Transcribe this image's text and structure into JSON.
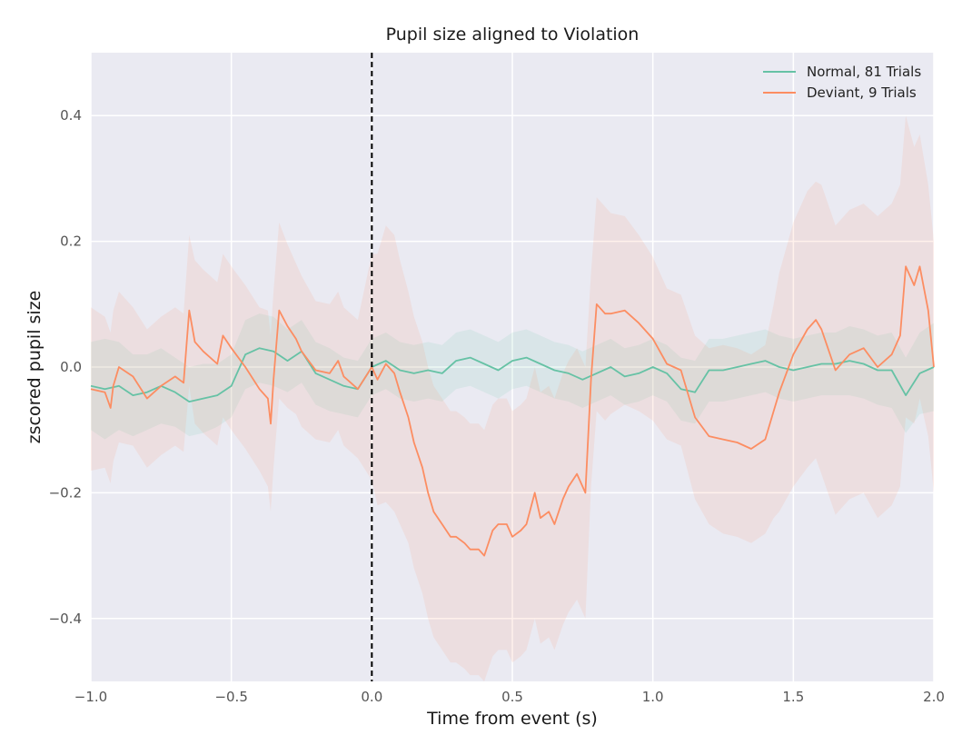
{
  "chart_data": {
    "type": "line",
    "title": "Pupil size aligned to Violation",
    "xlabel": "Time from event (s)",
    "ylabel": "zscored pupil size",
    "xlim": [
      -1.0,
      2.0
    ],
    "ylim": [
      -0.5,
      0.5
    ],
    "xticks": [
      -1.0,
      -0.5,
      0.0,
      0.5,
      1.0,
      1.5,
      2.0
    ],
    "xtick_labels": [
      "−1.0",
      "−0.5",
      "0.0",
      "0.5",
      "1.0",
      "1.5",
      "2.0"
    ],
    "yticks": [
      -0.4,
      -0.2,
      0.0,
      0.2,
      0.4
    ],
    "ytick_labels": [
      "−0.4",
      "−0.2",
      "0.0",
      "0.2",
      "0.4"
    ],
    "grid": true,
    "legend_position": "top-right",
    "event_line": {
      "x": 0.0,
      "style": "dashed",
      "color": "#000000"
    },
    "background_color": "#eaeaf2",
    "series": [
      {
        "name": "Normal, 81 Trials",
        "color": "#66c2a5",
        "points": [
          [
            -1.0,
            -0.03
          ],
          [
            -0.95,
            -0.035
          ],
          [
            -0.9,
            -0.03
          ],
          [
            -0.85,
            -0.045
          ],
          [
            -0.8,
            -0.04
          ],
          [
            -0.75,
            -0.03
          ],
          [
            -0.7,
            -0.04
          ],
          [
            -0.65,
            -0.055
          ],
          [
            -0.6,
            -0.05
          ],
          [
            -0.55,
            -0.045
          ],
          [
            -0.5,
            -0.03
          ],
          [
            -0.45,
            0.02
          ],
          [
            -0.4,
            0.03
          ],
          [
            -0.35,
            0.025
          ],
          [
            -0.3,
            0.01
          ],
          [
            -0.25,
            0.025
          ],
          [
            -0.2,
            -0.01
          ],
          [
            -0.15,
            -0.02
          ],
          [
            -0.1,
            -0.03
          ],
          [
            -0.05,
            -0.035
          ],
          [
            0.0,
            0.0
          ],
          [
            0.05,
            0.01
          ],
          [
            0.1,
            -0.005
          ],
          [
            0.15,
            -0.01
          ],
          [
            0.2,
            -0.005
          ],
          [
            0.25,
            -0.01
          ],
          [
            0.3,
            0.01
          ],
          [
            0.35,
            0.015
          ],
          [
            0.4,
            0.005
          ],
          [
            0.45,
            -0.005
          ],
          [
            0.5,
            0.01
          ],
          [
            0.55,
            0.015
          ],
          [
            0.6,
            0.005
          ],
          [
            0.65,
            -0.005
          ],
          [
            0.7,
            -0.01
          ],
          [
            0.75,
            -0.02
          ],
          [
            0.8,
            -0.01
          ],
          [
            0.85,
            0.0
          ],
          [
            0.9,
            -0.015
          ],
          [
            0.95,
            -0.01
          ],
          [
            1.0,
            0.0
          ],
          [
            1.05,
            -0.01
          ],
          [
            1.1,
            -0.035
          ],
          [
            1.15,
            -0.04
          ],
          [
            1.2,
            -0.005
          ],
          [
            1.25,
            -0.005
          ],
          [
            1.3,
            0.0
          ],
          [
            1.35,
            0.005
          ],
          [
            1.4,
            0.01
          ],
          [
            1.45,
            0.0
          ],
          [
            1.5,
            -0.005
          ],
          [
            1.55,
            0.0
          ],
          [
            1.6,
            0.005
          ],
          [
            1.65,
            0.005
          ],
          [
            1.7,
            0.01
          ],
          [
            1.75,
            0.005
          ],
          [
            1.8,
            -0.005
          ],
          [
            1.85,
            -0.005
          ],
          [
            1.9,
            -0.045
          ],
          [
            1.95,
            -0.01
          ],
          [
            2.0,
            0.0
          ]
        ],
        "band": [
          0.07,
          0.08,
          0.07,
          0.065,
          0.06,
          0.06,
          0.055,
          0.055,
          0.055,
          0.05,
          0.05,
          0.055,
          0.055,
          0.055,
          0.05,
          0.05,
          0.05,
          0.05,
          0.045,
          0.045,
          0.045,
          0.045,
          0.045,
          0.045,
          0.045,
          0.045,
          0.045,
          0.045,
          0.045,
          0.045,
          0.045,
          0.045,
          0.045,
          0.045,
          0.045,
          0.045,
          0.045,
          0.045,
          0.045,
          0.045,
          0.045,
          0.045,
          0.05,
          0.05,
          0.05,
          0.05,
          0.05,
          0.05,
          0.05,
          0.05,
          0.05,
          0.05,
          0.05,
          0.05,
          0.055,
          0.055,
          0.055,
          0.06,
          0.06,
          0.065,
          0.07
        ]
      },
      {
        "name": "Deviant, 9 Trials",
        "color": "#fc8d62",
        "points": [
          [
            -1.0,
            -0.035
          ],
          [
            -0.95,
            -0.04
          ],
          [
            -0.93,
            -0.065
          ],
          [
            -0.92,
            -0.03
          ],
          [
            -0.9,
            0.0
          ],
          [
            -0.85,
            -0.015
          ],
          [
            -0.8,
            -0.05
          ],
          [
            -0.75,
            -0.03
          ],
          [
            -0.7,
            -0.015
          ],
          [
            -0.67,
            -0.025
          ],
          [
            -0.65,
            0.09
          ],
          [
            -0.63,
            0.04
          ],
          [
            -0.6,
            0.025
          ],
          [
            -0.55,
            0.005
          ],
          [
            -0.53,
            0.05
          ],
          [
            -0.5,
            0.03
          ],
          [
            -0.45,
            0.0
          ],
          [
            -0.4,
            -0.035
          ],
          [
            -0.37,
            -0.05
          ],
          [
            -0.36,
            -0.09
          ],
          [
            -0.35,
            -0.02
          ],
          [
            -0.33,
            0.09
          ],
          [
            -0.3,
            0.065
          ],
          [
            -0.27,
            0.045
          ],
          [
            -0.25,
            0.025
          ],
          [
            -0.2,
            -0.005
          ],
          [
            -0.15,
            -0.01
          ],
          [
            -0.12,
            0.01
          ],
          [
            -0.1,
            -0.015
          ],
          [
            -0.05,
            -0.035
          ],
          [
            0.0,
            0.0
          ],
          [
            0.02,
            -0.02
          ],
          [
            0.05,
            0.005
          ],
          [
            0.08,
            -0.01
          ],
          [
            0.1,
            -0.04
          ],
          [
            0.13,
            -0.08
          ],
          [
            0.15,
            -0.12
          ],
          [
            0.18,
            -0.16
          ],
          [
            0.2,
            -0.2
          ],
          [
            0.22,
            -0.23
          ],
          [
            0.25,
            -0.25
          ],
          [
            0.28,
            -0.27
          ],
          [
            0.3,
            -0.27
          ],
          [
            0.33,
            -0.28
          ],
          [
            0.35,
            -0.29
          ],
          [
            0.38,
            -0.29
          ],
          [
            0.4,
            -0.3
          ],
          [
            0.43,
            -0.26
          ],
          [
            0.45,
            -0.25
          ],
          [
            0.48,
            -0.25
          ],
          [
            0.5,
            -0.27
          ],
          [
            0.53,
            -0.26
          ],
          [
            0.55,
            -0.25
          ],
          [
            0.58,
            -0.2
          ],
          [
            0.6,
            -0.24
          ],
          [
            0.63,
            -0.23
          ],
          [
            0.65,
            -0.25
          ],
          [
            0.68,
            -0.21
          ],
          [
            0.7,
            -0.19
          ],
          [
            0.73,
            -0.17
          ],
          [
            0.76,
            -0.2
          ],
          [
            0.78,
            -0.02
          ],
          [
            0.8,
            0.1
          ],
          [
            0.83,
            0.085
          ],
          [
            0.85,
            0.085
          ],
          [
            0.9,
            0.09
          ],
          [
            0.95,
            0.07
          ],
          [
            1.0,
            0.045
          ],
          [
            1.05,
            0.005
          ],
          [
            1.1,
            -0.005
          ],
          [
            1.15,
            -0.08
          ],
          [
            1.2,
            -0.11
          ],
          [
            1.25,
            -0.115
          ],
          [
            1.3,
            -0.12
          ],
          [
            1.35,
            -0.13
          ],
          [
            1.4,
            -0.115
          ],
          [
            1.43,
            -0.07
          ],
          [
            1.45,
            -0.04
          ],
          [
            1.5,
            0.02
          ],
          [
            1.55,
            0.06
          ],
          [
            1.58,
            0.075
          ],
          [
            1.6,
            0.06
          ],
          [
            1.65,
            -0.005
          ],
          [
            1.7,
            0.02
          ],
          [
            1.75,
            0.03
          ],
          [
            1.8,
            0.0
          ],
          [
            1.85,
            0.02
          ],
          [
            1.88,
            0.05
          ],
          [
            1.9,
            0.16
          ],
          [
            1.93,
            0.13
          ],
          [
            1.95,
            0.16
          ],
          [
            1.98,
            0.09
          ],
          [
            2.0,
            0.0
          ]
        ],
        "band": [
          0.13,
          0.12,
          0.12,
          0.12,
          0.12,
          0.11,
          0.11,
          0.11,
          0.11,
          0.11,
          0.12,
          0.13,
          0.13,
          0.13,
          0.13,
          0.13,
          0.13,
          0.13,
          0.14,
          0.14,
          0.14,
          0.14,
          0.13,
          0.12,
          0.12,
          0.11,
          0.11,
          0.11,
          0.11,
          0.11,
          0.18,
          0.2,
          0.22,
          0.22,
          0.21,
          0.2,
          0.2,
          0.2,
          0.2,
          0.2,
          0.2,
          0.2,
          0.2,
          0.2,
          0.2,
          0.2,
          0.2,
          0.2,
          0.2,
          0.2,
          0.2,
          0.2,
          0.2,
          0.2,
          0.2,
          0.2,
          0.2,
          0.2,
          0.2,
          0.2,
          0.2,
          0.17,
          0.17,
          0.17,
          0.16,
          0.15,
          0.14,
          0.13,
          0.12,
          0.12,
          0.13,
          0.14,
          0.15,
          0.15,
          0.15,
          0.15,
          0.17,
          0.19,
          0.21,
          0.22,
          0.22,
          0.23,
          0.23,
          0.23,
          0.23,
          0.24,
          0.24,
          0.24,
          0.24,
          0.22,
          0.21,
          0.2,
          0.2
        ]
      }
    ]
  }
}
